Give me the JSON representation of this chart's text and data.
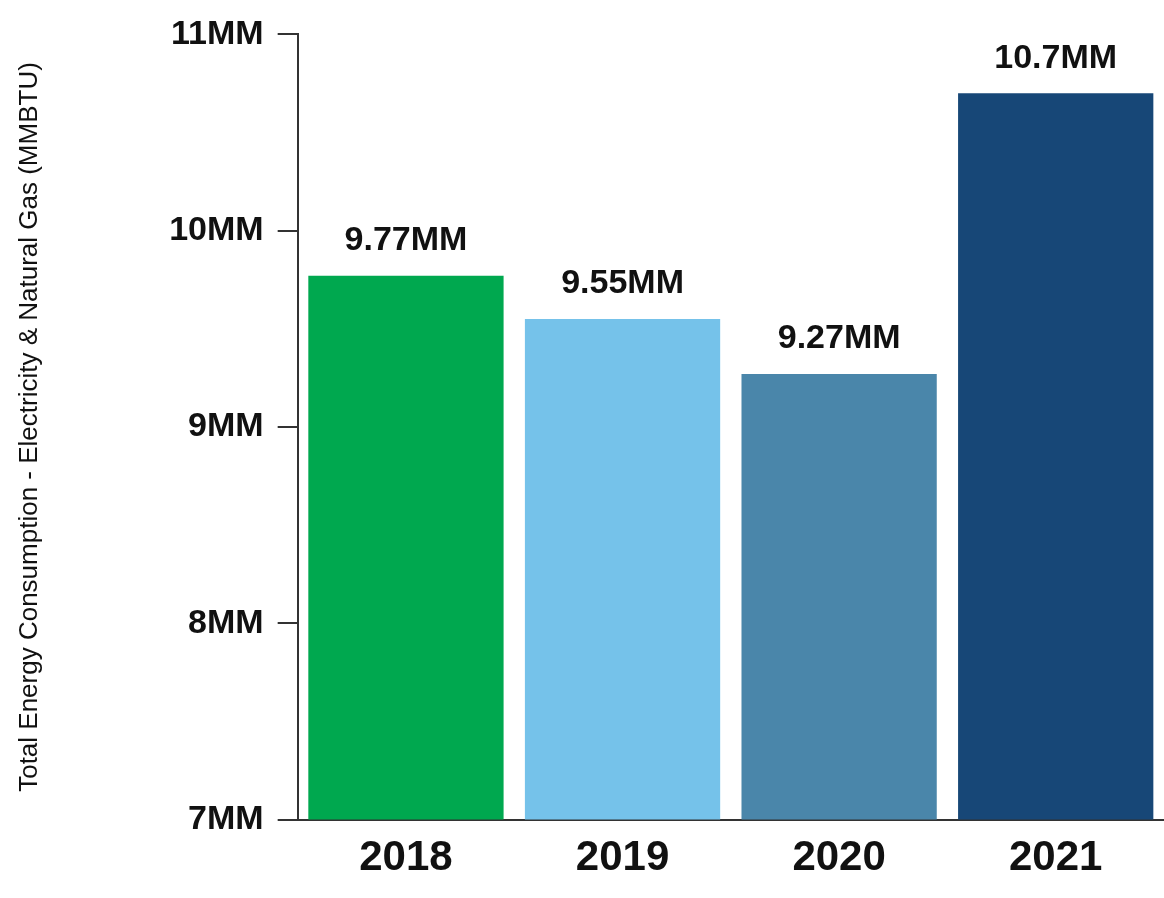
{
  "chart_data": {
    "type": "bar",
    "ylabel": "Total Energy Consumption - Electricity & Natural Gas (MMBTU)",
    "categories": [
      "2018",
      "2019",
      "2020",
      "2021"
    ],
    "values": [
      9.77,
      9.55,
      9.27,
      10.7
    ],
    "colors": [
      "#00a84f",
      "#75c2ea",
      "#4a86aa",
      "#174777"
    ],
    "value_labels": [
      "9.77MM",
      "9.55MM",
      "9.27MM",
      "10.7MM"
    ],
    "ylim": [
      7,
      11
    ],
    "yticks": [
      {
        "value": 7,
        "label": "7MM"
      },
      {
        "value": 8,
        "label": "8MM"
      },
      {
        "value": 9,
        "label": "9MM"
      },
      {
        "value": 10,
        "label": "10MM"
      },
      {
        "value": 11,
        "label": "11MM"
      }
    ],
    "grid": false,
    "legend": false
  }
}
